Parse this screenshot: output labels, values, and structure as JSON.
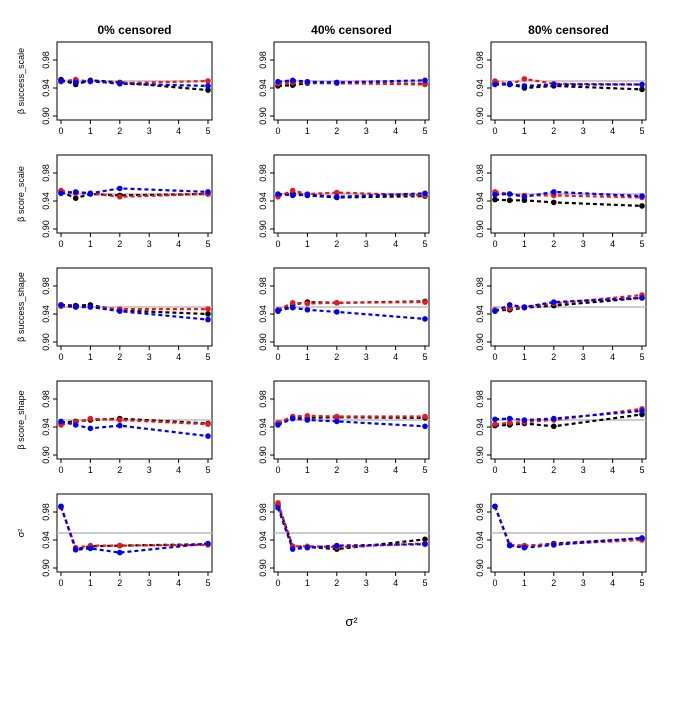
{
  "chart_data": {
    "type": "line",
    "description": "Coverage probabilities vs sigma^2 under three censoring levels",
    "columns": [
      "0% censored",
      "40% censored",
      "80% censored"
    ],
    "rows": [
      {
        "ylabel": "β success_scale"
      },
      {
        "ylabel": "β score_scale"
      },
      {
        "ylabel": "β success_shape"
      },
      {
        "ylabel": "β score_shape"
      },
      {
        "ylabel": "σ²"
      }
    ],
    "x": [
      0,
      0.5,
      1,
      2,
      5
    ],
    "xticks": [
      0,
      1,
      2,
      3,
      4,
      5
    ],
    "xticklabels": [
      "0",
      "1",
      "2",
      "3",
      "4",
      "5"
    ],
    "xlim": [
      0,
      5
    ],
    "ylim": [
      0.9,
      1.0
    ],
    "yticks": [
      0.9,
      0.94,
      0.98
    ],
    "yticklabels": [
      "0.90",
      "0.94",
      "0.98"
    ],
    "reference_line": 0.95,
    "xlabel": "σ²",
    "series_colors": [
      "#000000",
      "#e41a1c",
      "#0000ee"
    ],
    "reference_color": "#bbbbbb",
    "panels": [
      [
        {
          "series": [
            [
              0.952,
              0.945,
              0.951,
              0.948,
              0.937
            ],
            [
              0.949,
              0.952,
              0.949,
              0.947,
              0.95
            ],
            [
              0.95,
              0.948,
              0.95,
              0.946,
              0.943
            ]
          ]
        },
        {
          "series": [
            [
              0.953,
              0.944,
              0.95,
              0.948,
              0.95
            ],
            [
              0.955,
              0.951,
              0.951,
              0.946,
              0.95
            ],
            [
              0.951,
              0.953,
              0.951,
              0.958,
              0.953
            ]
          ]
        },
        {
          "series": [
            [
              0.953,
              0.952,
              0.953,
              0.945,
              0.94
            ],
            [
              0.951,
              0.95,
              0.95,
              0.947,
              0.947
            ],
            [
              0.953,
              0.95,
              0.95,
              0.944,
              0.932
            ]
          ]
        },
        {
          "series": [
            [
              0.946,
              0.948,
              0.95,
              0.952,
              0.945
            ],
            [
              0.943,
              0.947,
              0.952,
              0.95,
              0.944
            ],
            [
              0.948,
              0.943,
              0.938,
              0.942,
              0.927
            ]
          ]
        },
        {
          "series": [
            [
              0.988,
              0.927,
              0.931,
              0.932,
              0.934
            ],
            [
              0.987,
              0.929,
              0.932,
              0.932,
              0.933
            ],
            [
              0.988,
              0.926,
              0.928,
              0.922,
              0.935
            ]
          ]
        }
      ],
      [
        {
          "series": [
            [
              0.943,
              0.944,
              0.947,
              0.947,
              0.946
            ],
            [
              0.946,
              0.948,
              0.948,
              0.947,
              0.945
            ],
            [
              0.949,
              0.951,
              0.949,
              0.948,
              0.951
            ]
          ]
        },
        {
          "series": [
            [
              0.948,
              0.951,
              0.948,
              0.945,
              0.947
            ],
            [
              0.946,
              0.955,
              0.95,
              0.952,
              0.948
            ],
            [
              0.95,
              0.948,
              0.949,
              0.946,
              0.951
            ]
          ]
        },
        {
          "series": [
            [
              0.944,
              0.953,
              0.957,
              0.956,
              0.958
            ],
            [
              0.946,
              0.956,
              0.955,
              0.956,
              0.957
            ],
            [
              0.945,
              0.949,
              0.946,
              0.943,
              0.933
            ]
          ]
        },
        {
          "series": [
            [
              0.945,
              0.954,
              0.953,
              0.954,
              0.953
            ],
            [
              0.946,
              0.955,
              0.956,
              0.955,
              0.955
            ],
            [
              0.943,
              0.952,
              0.95,
              0.948,
              0.941
            ]
          ]
        },
        {
          "series": [
            [
              0.99,
              0.931,
              0.93,
              0.927,
              0.941
            ],
            [
              0.993,
              0.931,
              0.931,
              0.93,
              0.935
            ],
            [
              0.986,
              0.927,
              0.929,
              0.932,
              0.934
            ]
          ]
        }
      ],
      [
        {
          "series": [
            [
              0.946,
              0.946,
              0.94,
              0.943,
              0.938
            ],
            [
              0.95,
              0.945,
              0.953,
              0.946,
              0.945
            ],
            [
              0.945,
              0.945,
              0.943,
              0.945,
              0.945
            ]
          ]
        },
        {
          "series": [
            [
              0.942,
              0.941,
              0.941,
              0.938,
              0.933
            ],
            [
              0.953,
              0.95,
              0.948,
              0.948,
              0.945
            ],
            [
              0.949,
              0.95,
              0.946,
              0.953,
              0.947
            ]
          ]
        },
        {
          "series": [
            [
              0.945,
              0.946,
              0.949,
              0.952,
              0.963
            ],
            [
              0.946,
              0.948,
              0.95,
              0.955,
              0.967
            ],
            [
              0.944,
              0.953,
              0.95,
              0.957,
              0.963
            ]
          ]
        },
        {
          "series": [
            [
              0.942,
              0.943,
              0.945,
              0.941,
              0.958
            ],
            [
              0.944,
              0.946,
              0.947,
              0.95,
              0.966
            ],
            [
              0.951,
              0.952,
              0.95,
              0.952,
              0.963
            ]
          ]
        },
        {
          "series": [
            [
              0.988,
              0.933,
              0.931,
              0.935,
              0.942
            ],
            [
              0.988,
              0.933,
              0.932,
              0.934,
              0.94
            ],
            [
              0.988,
              0.932,
              0.929,
              0.933,
              0.943
            ]
          ]
        }
      ]
    ]
  }
}
